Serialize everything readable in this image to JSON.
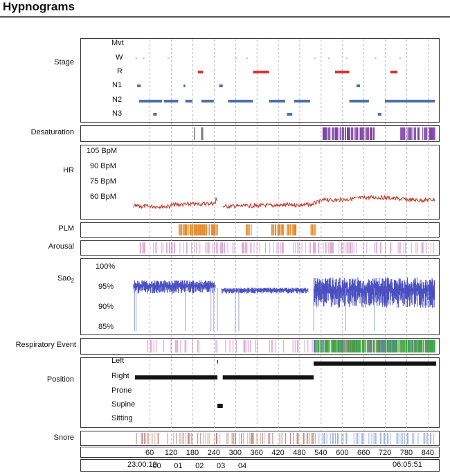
{
  "title": "Hypnograms",
  "chart_data": {
    "type": "line",
    "x_axis": {
      "unit": "minutes",
      "ticks": [
        60,
        120,
        180,
        240,
        300,
        360,
        420,
        480,
        540,
        600,
        660,
        720,
        780,
        840
      ],
      "range": [
        0,
        870
      ]
    },
    "clock": {
      "start": "23:00:19",
      "end": "06:05:51",
      "hours": [
        "00",
        "01",
        "02",
        "03",
        "04"
      ]
    },
    "tracks": {
      "stage": {
        "label": "Stage",
        "levels": [
          "Mvt",
          "W",
          "R",
          "N1",
          "N2",
          "N3"
        ],
        "segments": [
          {
            "level": "N1",
            "from": 25,
            "to": 35
          },
          {
            "level": "N2",
            "from": 30,
            "to": 95
          },
          {
            "level": "N3",
            "from": 70,
            "to": 80
          },
          {
            "level": "N2",
            "from": 100,
            "to": 140
          },
          {
            "level": "N1",
            "from": 155,
            "to": 160
          },
          {
            "level": "N2",
            "from": 160,
            "to": 180
          },
          {
            "level": "R",
            "from": 195,
            "to": 210
          },
          {
            "level": "N2",
            "from": 205,
            "to": 240
          },
          {
            "level": "N1",
            "from": 255,
            "to": 265
          },
          {
            "level": "N2",
            "from": 280,
            "to": 350
          },
          {
            "level": "R",
            "from": 350,
            "to": 395
          },
          {
            "level": "N2",
            "from": 395,
            "to": 440
          },
          {
            "level": "N3",
            "from": 445,
            "to": 460
          },
          {
            "level": "N2",
            "from": 465,
            "to": 510
          },
          {
            "level": "R",
            "from": 580,
            "to": 620
          },
          {
            "level": "N1",
            "from": 640,
            "to": 650
          },
          {
            "level": "N2",
            "from": 620,
            "to": 675
          },
          {
            "level": "N3",
            "from": 700,
            "to": 710
          },
          {
            "level": "R",
            "from": 735,
            "to": 755
          },
          {
            "level": "N2",
            "from": 720,
            "to": 860
          }
        ]
      },
      "desaturation": {
        "label": "Desaturation"
      },
      "hr": {
        "label": "HR",
        "levels": [
          "105 BpM",
          "90 BpM",
          "75 BpM",
          "60 BpM"
        ]
      },
      "plm": {
        "label": "PLM"
      },
      "arousal": {
        "label": "Arousal"
      },
      "sao2": {
        "label": "Sao",
        "sub": "2",
        "levels": [
          "100%",
          "95%",
          "90%",
          "85%"
        ]
      },
      "respiratory": {
        "label": "Respiratory Event"
      },
      "position": {
        "label": "Position",
        "levels": [
          "Left",
          "Right",
          "Prone",
          "Supine",
          "Sitting"
        ],
        "segments": [
          {
            "level": "Right",
            "from": 0,
            "to": 250
          },
          {
            "level": "Supine",
            "from": 250,
            "to": 265
          },
          {
            "level": "Right",
            "from": 265,
            "to": 520
          },
          {
            "level": "Left",
            "from": 520,
            "to": 870
          }
        ]
      },
      "snore": {
        "label": "Snore"
      }
    },
    "colors": {
      "stage_R": "#d9322a",
      "stage_N": "#4a6fb0",
      "desat": "#7a3fa0",
      "hr": "#c0392b",
      "plm": "#e08a2c",
      "arousal": "#c46bb3",
      "sao2": "#4a4fc0",
      "resp": "#3aa63a",
      "position": "#111111"
    }
  }
}
